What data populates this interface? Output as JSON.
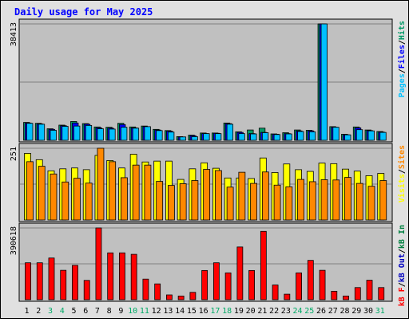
{
  "colors": {
    "frame": "#e0e0e0",
    "plot_bg": "#c0c0c0",
    "title": "#0000ff",
    "grid": "#808080",
    "hits": "#009966",
    "files": "#0000ff",
    "pages": "#00c0ff",
    "visits": "#ffff00",
    "sites": "#ff8800",
    "kb_in": "#008040",
    "kb_out": "#0000c0",
    "kb_f": "#ff0000",
    "weekend_day": "#00aa66",
    "weekday_day": "#000000"
  },
  "chart_data": {
    "type": "bar",
    "title": "Daily usage for May 2025",
    "categories": [
      "1",
      "2",
      "3",
      "4",
      "5",
      "6",
      "7",
      "8",
      "9",
      "10",
      "11",
      "12",
      "13",
      "14",
      "15",
      "16",
      "17",
      "18",
      "19",
      "20",
      "21",
      "22",
      "23",
      "24",
      "25",
      "26",
      "27",
      "28",
      "29",
      "30",
      "31"
    ],
    "weekend_days": [
      "3",
      "4",
      "10",
      "11",
      "17",
      "18",
      "24",
      "25",
      "31"
    ],
    "panels": [
      {
        "id": "top",
        "max_label": "38413",
        "ylim": [
          0,
          38413
        ],
        "legend": [
          {
            "text": "Pages",
            "color": "#00c0ff"
          },
          {
            "text": "/",
            "color": "#000000"
          },
          {
            "text": "Files",
            "color": "#0000ff"
          },
          {
            "text": "/",
            "color": "#000000"
          },
          {
            "text": "Hits",
            "color": "#009966"
          }
        ],
        "series": [
          {
            "name": "Hits",
            "color": "#009966",
            "values": [
              5900,
              5600,
              3800,
              5000,
              6200,
              5500,
              4400,
              4300,
              5600,
              4400,
              4700,
              3600,
              3200,
              1200,
              1700,
              2400,
              2400,
              5700,
              2800,
              3400,
              4000,
              2100,
              2500,
              3400,
              3300,
              38413,
              4500,
              2000,
              4400,
              3400,
              2900
            ]
          },
          {
            "name": "Files",
            "color": "#0000ff",
            "values": [
              5700,
              5400,
              3600,
              4800,
              5700,
              5300,
              4100,
              4000,
              5200,
              4100,
              4500,
              3400,
              3000,
              1100,
              1500,
              2200,
              2300,
              5500,
              2600,
              2200,
              2600,
              2000,
              2200,
              3100,
              3100,
              38413,
              4300,
              1800,
              4100,
              3200,
              2700
            ]
          },
          {
            "name": "Pages",
            "color": "#00c0ff",
            "values": [
              5600,
              5300,
              3300,
              4600,
              4700,
              4900,
              3800,
              3700,
              4300,
              4000,
              4500,
              3200,
              2700,
              1100,
              1200,
              2200,
              2200,
              5300,
              2200,
              2100,
              2500,
              1900,
              2100,
              2900,
              2800,
              38413,
              4300,
              1800,
              3500,
              3100,
              2600
            ]
          }
        ]
      },
      {
        "id": "middle",
        "max_label": "251",
        "ylim": [
          0,
          251
        ],
        "legend": [
          {
            "text": "Visits",
            "color": "#ffff00"
          },
          {
            "text": "/",
            "color": "#000000"
          },
          {
            "text": "Sites",
            "color": "#ff8800"
          }
        ],
        "series": [
          {
            "name": "Visits",
            "color": "#ffff00",
            "values": [
              233,
              211,
              172,
              179,
              182,
              176,
              226,
              208,
              182,
              230,
              203,
              206,
              206,
              142,
              179,
              200,
              181,
              147,
              147,
              145,
              217,
              166,
              196,
              176,
              170,
              199,
              197,
              178,
              171,
              155,
              163
            ]
          },
          {
            "name": "Sites",
            "color": "#ff8800",
            "values": [
              204,
              188,
              161,
              133,
              146,
              129,
              251,
              204,
              148,
              192,
              192,
              135,
              121,
              127,
              138,
              177,
              173,
              115,
              167,
              128,
              168,
              122,
              116,
              142,
              134,
              141,
              140,
              149,
              128,
              118,
              138
            ]
          }
        ]
      },
      {
        "id": "bottom",
        "max_label": "390618",
        "ylim": [
          0,
          390618
        ],
        "legend": [
          {
            "text": "kB F",
            "color": "#ff0000"
          },
          {
            "text": "/",
            "color": "#000000"
          },
          {
            "text": "kB Out",
            "color": "#0000c0"
          },
          {
            "text": "/",
            "color": "#000000"
          },
          {
            "text": "kB In",
            "color": "#008040"
          }
        ],
        "series": [
          {
            "name": "kB F",
            "color": "#ff0000",
            "values": [
              201000,
              201000,
              227000,
              160000,
              187000,
              105000,
              390618,
              255000,
              255000,
              247000,
              112000,
              86000,
              26000,
              20000,
              40000,
              159000,
              201000,
              146000,
              287000,
              159000,
              372000,
              80000,
              30000,
              146000,
              214000,
              160000,
              46000,
              20000,
              66000,
              106000,
              66000
            ]
          }
        ]
      }
    ]
  }
}
